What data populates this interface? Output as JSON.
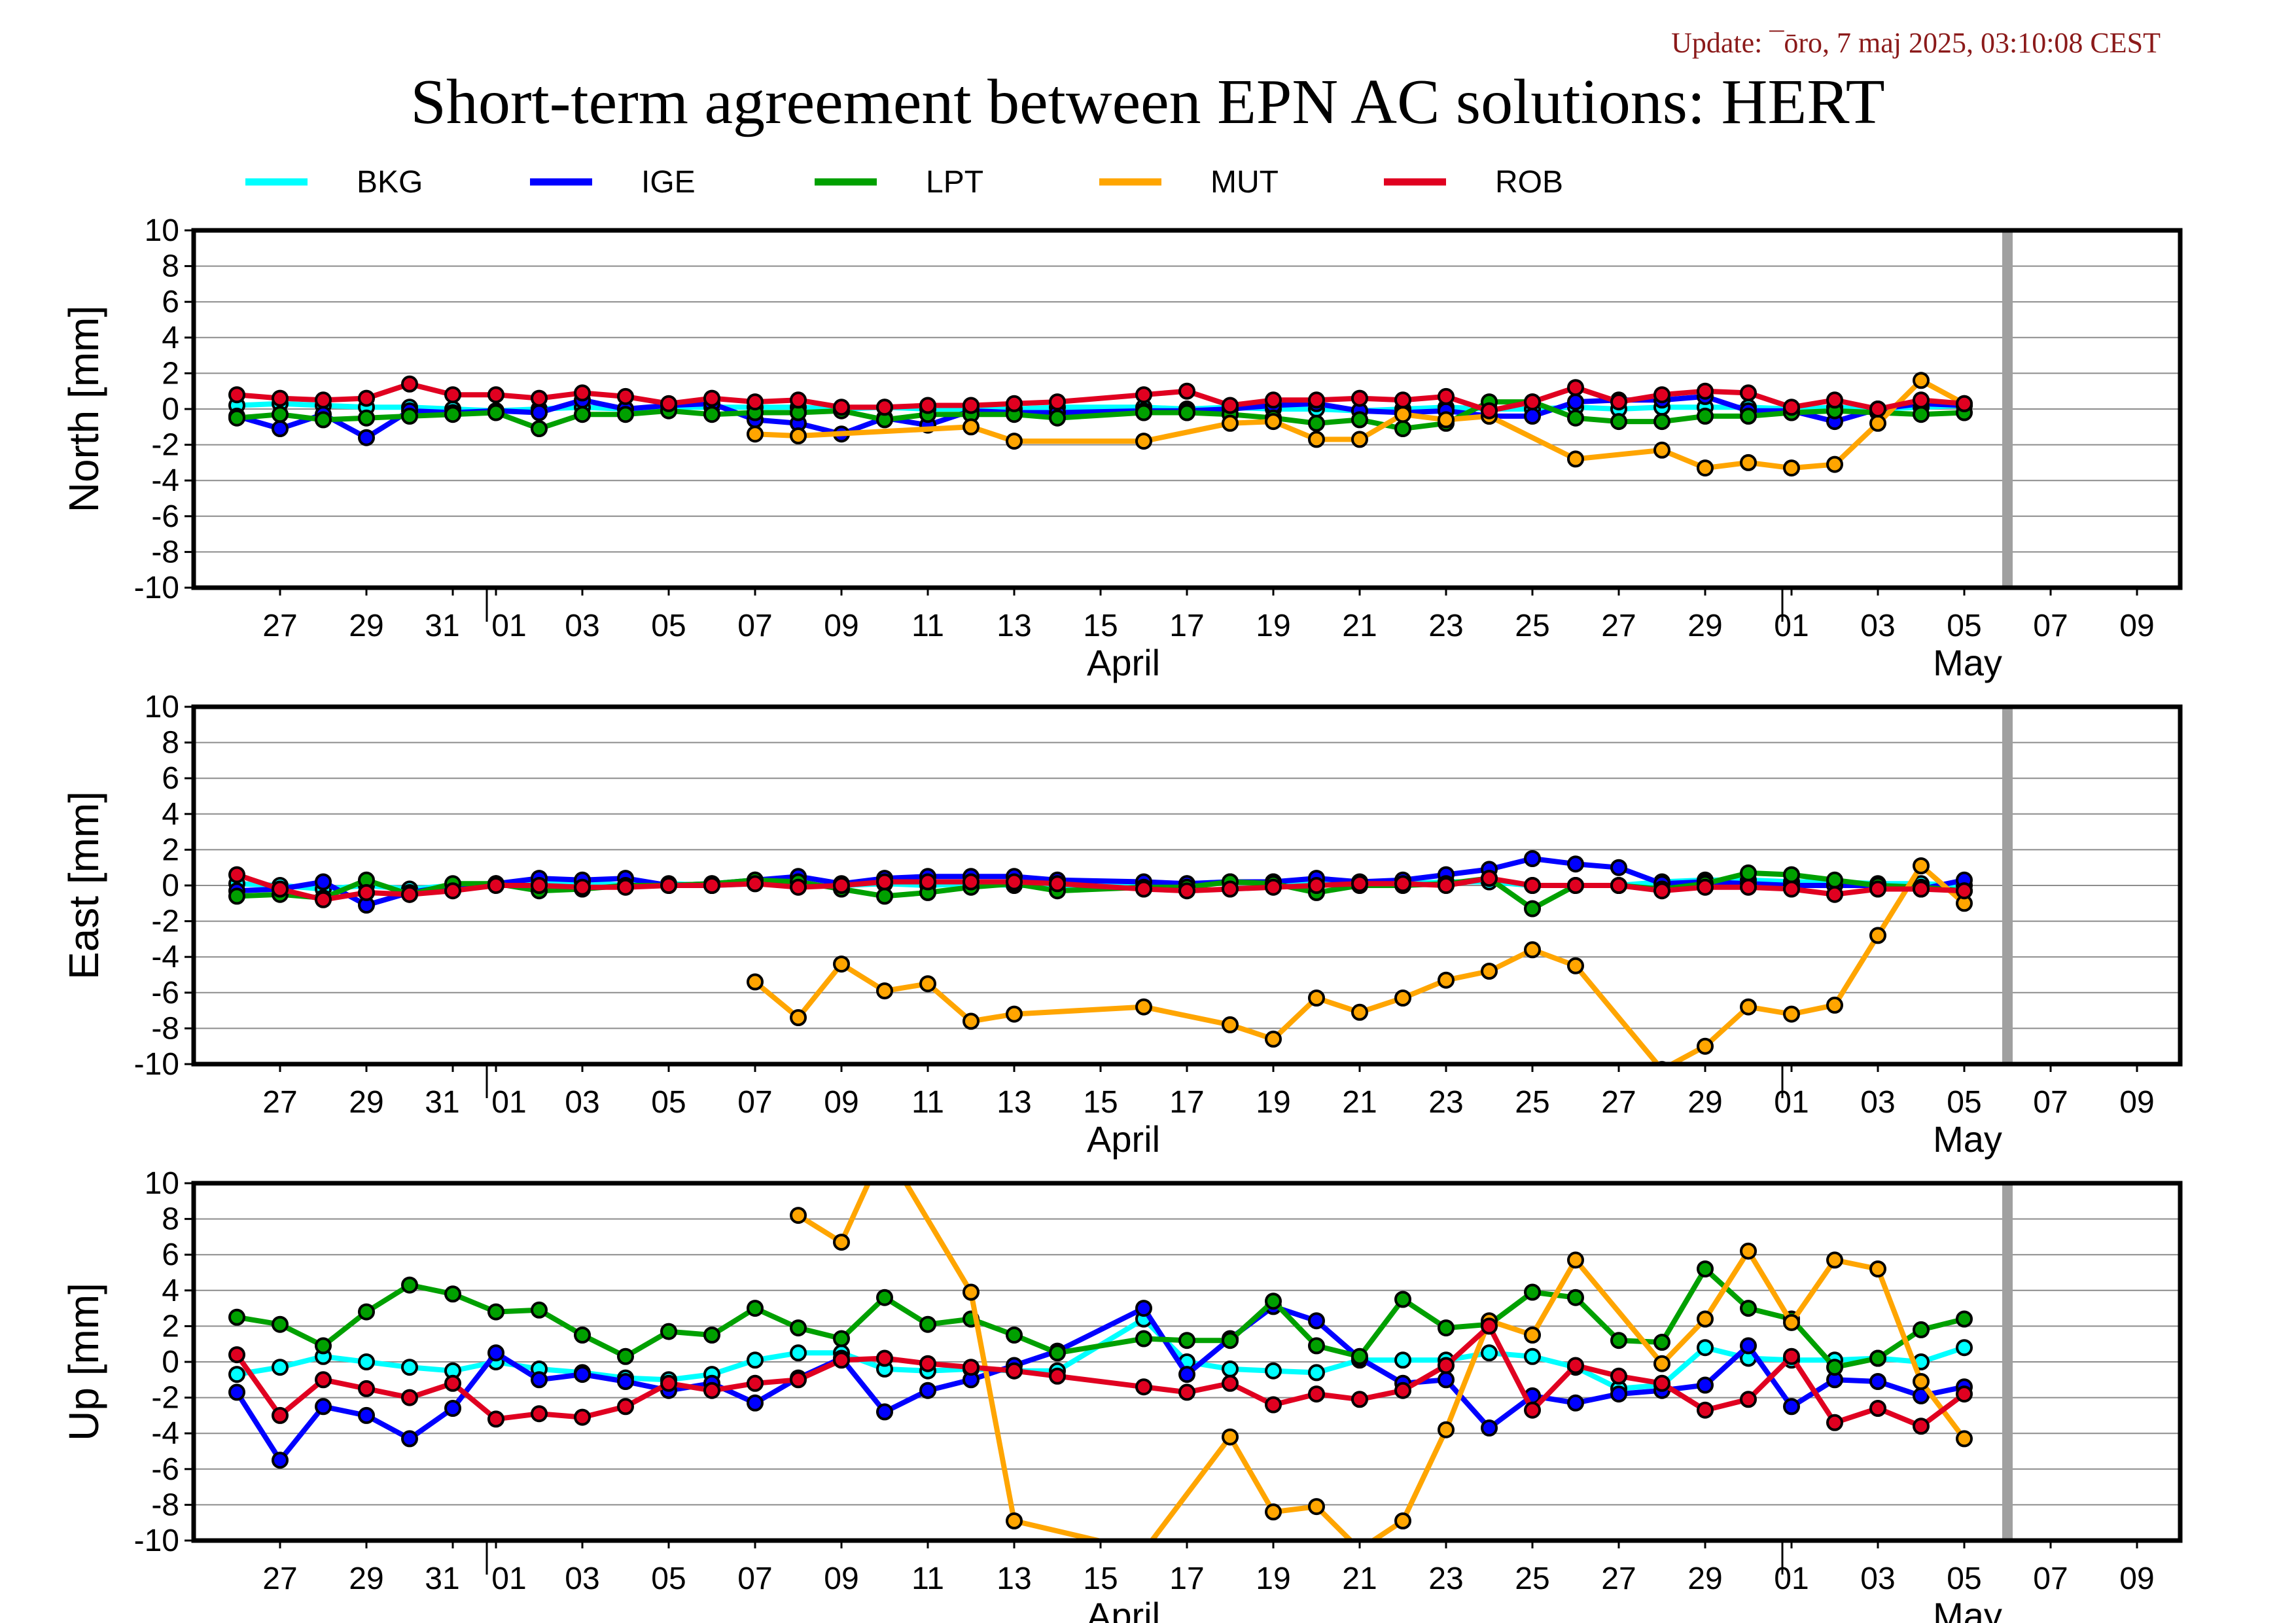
{
  "header": {
    "update_text": "Update: ¯ōro, 7 maj 2025, 03:10:08 CEST",
    "title": "Short-term agreement between EPN AC solutions: HERT"
  },
  "legend": [
    {
      "name": "BKG",
      "color": "#00ffff"
    },
    {
      "name": "IGE",
      "color": "#0000ff"
    },
    {
      "name": "LPT",
      "color": "#00a000"
    },
    {
      "name": "MUT",
      "color": "#ffa500"
    },
    {
      "name": "ROB",
      "color": "#e00020"
    }
  ],
  "chart_data": {
    "type": "line",
    "x_axis": {
      "range": [
        "2025-03-25",
        "2025-05-10"
      ],
      "tick_labels": [
        "27",
        "29",
        "31",
        "01",
        "03",
        "05",
        "07",
        "09",
        "11",
        "13",
        "15",
        "17",
        "19",
        "21",
        "23",
        "25",
        "27",
        "29",
        "01",
        "03",
        "05",
        "07",
        "09"
      ],
      "month_labels": [
        "April",
        "May"
      ]
    },
    "ylim": [
      -10,
      10
    ],
    "y_ticks": [
      "10",
      "8",
      "6",
      "4",
      "2",
      "0",
      "-2",
      "-4",
      "-6",
      "-8",
      "-10"
    ],
    "dates": [
      "03-26",
      "03-27",
      "03-28",
      "03-29",
      "03-30",
      "03-31",
      "04-01",
      "04-02",
      "04-03",
      "04-04",
      "04-05",
      "04-06",
      "04-07",
      "04-08",
      "04-09",
      "04-10",
      "04-11",
      "04-12",
      "04-13",
      "04-14",
      "04-16",
      "04-17",
      "04-18",
      "04-19",
      "04-20",
      "04-21",
      "04-22",
      "04-23",
      "04-24",
      "04-25",
      "04-26",
      "04-27",
      "04-28",
      "04-29",
      "04-30",
      "05-01",
      "05-02",
      "05-03",
      "05-04",
      "05-05"
    ],
    "panels": [
      {
        "ylabel": "North [mm]",
        "series": [
          {
            "name": "BKG",
            "values": [
              0.2,
              0.3,
              0.2,
              0.1,
              0.1,
              0,
              -0.1,
              0,
              0.1,
              0,
              0.1,
              0.1,
              0.1,
              0.1,
              0,
              0.1,
              0,
              0,
              0,
              0.1,
              0.1,
              0,
              0.1,
              0,
              0,
              -0.1,
              0,
              0.1,
              0,
              0,
              0.1,
              0,
              0.1,
              0.1,
              0.1,
              0,
              0.1,
              0,
              0.1,
              0.2
            ]
          },
          {
            "name": "IGE",
            "values": [
              -0.4,
              -1.1,
              -0.3,
              -1.6,
              -0.1,
              -0.2,
              -0.1,
              -0.2,
              0.5,
              0,
              0.2,
              0.3,
              -0.6,
              -0.8,
              -1.4,
              -0.5,
              -0.9,
              -0.1,
              -0.2,
              -0.2,
              -0.1,
              -0.1,
              0,
              0.2,
              0.3,
              -0.1,
              -0.2,
              -0.1,
              -0.4,
              -0.4,
              0.4,
              0.5,
              0.5,
              0.7,
              -0.1,
              -0.1,
              -0.7,
              0,
              0.3,
              0.2
            ]
          },
          {
            "name": "LPT",
            "values": [
              -0.5,
              -0.3,
              -0.6,
              -0.5,
              -0.4,
              -0.3,
              -0.2,
              -1.1,
              -0.3,
              -0.3,
              -0.1,
              -0.3,
              -0.2,
              -0.2,
              -0.1,
              -0.6,
              -0.3,
              -0.3,
              -0.3,
              -0.5,
              -0.2,
              -0.2,
              -0.3,
              -0.5,
              -0.8,
              -0.6,
              -1.1,
              -0.8,
              0.4,
              0.4,
              -0.5,
              -0.7,
              -0.7,
              -0.4,
              -0.4,
              -0.2,
              -0.1,
              -0.2,
              -0.3,
              -0.2
            ]
          },
          {
            "name": "MUT",
            "values": [
              null,
              null,
              null,
              null,
              null,
              null,
              null,
              null,
              null,
              null,
              null,
              null,
              -1.4,
              -1.5,
              null,
              null,
              null,
              -1.0,
              -1.8,
              null,
              -1.8,
              null,
              -0.8,
              -0.7,
              -1.7,
              -1.7,
              -0.3,
              -0.6,
              -0.4,
              null,
              -2.8,
              null,
              -2.3,
              -3.3,
              -3.0,
              -3.3,
              -3.1,
              -0.8,
              1.6,
              0.3
            ]
          },
          {
            "name": "ROB",
            "values": [
              0.8,
              0.6,
              0.5,
              0.6,
              1.4,
              0.8,
              0.8,
              0.6,
              0.9,
              0.7,
              0.3,
              0.6,
              0.4,
              0.5,
              0.1,
              0.1,
              0.2,
              0.2,
              0.3,
              0.4,
              0.8,
              1.0,
              0.2,
              0.5,
              0.5,
              0.6,
              0.5,
              0.7,
              -0.1,
              0.4,
              1.2,
              0.4,
              0.8,
              1.0,
              0.9,
              0.1,
              0.5,
              0,
              0.5,
              0.3
            ]
          }
        ]
      },
      {
        "ylabel": "East [mm]",
        "series": [
          {
            "name": "BKG",
            "values": [
              0.1,
              0,
              -0.2,
              0,
              -0.2,
              0,
              0.1,
              0.1,
              0.2,
              0,
              0.1,
              0,
              0.1,
              0,
              0,
              0.1,
              0,
              0.1,
              0,
              0,
              0,
              0.1,
              0.2,
              0.2,
              0.1,
              0.1,
              0.1,
              0.2,
              0.2,
              0,
              0,
              0,
              0.2,
              0.3,
              0.3,
              0.2,
              0.2,
              0.1,
              0.1,
              0
            ]
          },
          {
            "name": "IGE",
            "values": [
              -0.3,
              -0.2,
              0.2,
              -1.1,
              -0.4,
              0,
              0.1,
              0.4,
              0.3,
              0.4,
              0,
              0.1,
              0.3,
              0.5,
              0.1,
              0.4,
              0.5,
              0.5,
              0.5,
              0.3,
              0.2,
              0.1,
              0.2,
              0.2,
              0.4,
              0.2,
              0.3,
              0.6,
              0.9,
              1.5,
              1.2,
              1.0,
              0.1,
              0.2,
              0.1,
              0,
              0,
              0,
              -0.2,
              0.3
            ]
          },
          {
            "name": "LPT",
            "values": [
              -0.6,
              -0.5,
              -0.7,
              0.3,
              -0.5,
              0.1,
              0.1,
              -0.3,
              -0.2,
              0,
              0,
              0.1,
              0.3,
              0.2,
              -0.2,
              -0.6,
              -0.4,
              -0.1,
              0.1,
              -0.3,
              -0.1,
              -0.1,
              0.2,
              0.1,
              -0.4,
              0,
              0,
              0.1,
              0.4,
              -1.3,
              0,
              0,
              -0.2,
              0.1,
              0.7,
              0.6,
              0.3,
              0,
              -0.1,
              -0.3
            ]
          },
          {
            "name": "MUT",
            "values": [
              null,
              null,
              null,
              null,
              null,
              null,
              null,
              null,
              null,
              null,
              null,
              null,
              -5.4,
              -7.4,
              -4.4,
              -5.9,
              -5.5,
              -7.6,
              -7.2,
              null,
              -6.8,
              null,
              -7.8,
              -8.6,
              -6.3,
              -7.1,
              -6.3,
              -5.3,
              -4.8,
              -3.6,
              -4.5,
              null,
              -10.3,
              -9.0,
              -6.8,
              -7.2,
              -6.7,
              -2.8,
              1.1,
              -1.0
            ]
          },
          {
            "name": "ROB",
            "values": [
              0.6,
              -0.2,
              -0.8,
              -0.4,
              -0.5,
              -0.3,
              0,
              0,
              -0.1,
              -0.1,
              0,
              0,
              0.1,
              -0.1,
              0,
              0.2,
              0.2,
              0.2,
              0.2,
              0.1,
              -0.2,
              -0.3,
              -0.2,
              -0.1,
              0,
              0.1,
              0.1,
              0,
              0.4,
              0,
              0,
              0,
              -0.3,
              -0.1,
              -0.1,
              -0.2,
              -0.5,
              -0.2,
              -0.2,
              -0.3
            ]
          }
        ]
      },
      {
        "ylabel": "Up [mm]",
        "series": [
          {
            "name": "BKG",
            "values": [
              -0.7,
              -0.3,
              0.3,
              0,
              -0.3,
              -0.5,
              0,
              -0.4,
              -0.6,
              -0.9,
              -1.0,
              -0.7,
              0.1,
              0.5,
              0.5,
              -0.4,
              -0.5,
              -0.4,
              -0.5,
              -0.5,
              2.4,
              0,
              -0.4,
              -0.5,
              -0.6,
              0.1,
              0.1,
              0.1,
              0.5,
              0.3,
              -0.3,
              -1.5,
              -1.3,
              0.8,
              0.2,
              0.1,
              0.1,
              0.2,
              0,
              0.8
            ]
          },
          {
            "name": "IGE",
            "values": [
              -1.7,
              -5.5,
              -2.5,
              -3.0,
              -4.3,
              -2.6,
              0.5,
              -1.0,
              -0.7,
              -1.1,
              -1.6,
              -1.2,
              -2.3,
              -0.9,
              0.2,
              -2.8,
              -1.6,
              -1.0,
              -0.2,
              0.6,
              3.0,
              -0.7,
              1.3,
              3.1,
              2.3,
              0.2,
              -1.2,
              -1.0,
              -3.7,
              -1.9,
              -2.3,
              -1.8,
              -1.6,
              -1.3,
              0.9,
              -2.5,
              -1.0,
              -1.1,
              -1.9,
              -1.4
            ]
          },
          {
            "name": "LPT",
            "values": [
              2.5,
              2.1,
              0.9,
              2.8,
              4.3,
              3.8,
              2.8,
              2.9,
              1.5,
              0.3,
              1.7,
              1.5,
              3.0,
              1.9,
              1.3,
              3.6,
              2.1,
              2.4,
              1.5,
              0.5,
              1.3,
              1.2,
              1.2,
              3.4,
              0.9,
              0.3,
              3.5,
              1.9,
              2.1,
              3.9,
              3.6,
              1.2,
              1.1,
              5.2,
              3.0,
              2.4,
              -0.3,
              0.2,
              1.8,
              2.4
            ]
          },
          {
            "name": "MUT",
            "values": [
              null,
              null,
              null,
              null,
              null,
              null,
              null,
              null,
              null,
              null,
              null,
              null,
              null,
              8.2,
              6.7,
              12.0,
              null,
              3.9,
              -8.9,
              null,
              -10.6,
              null,
              -4.2,
              -8.4,
              -8.1,
              -10.5,
              -8.9,
              -3.8,
              2.3,
              1.5,
              5.7,
              null,
              -0.1,
              2.4,
              6.2,
              2.2,
              5.7,
              5.2,
              -1.1,
              -4.3
            ]
          },
          {
            "name": "ROB",
            "values": [
              0.4,
              -3.0,
              -1.0,
              -1.5,
              -2.0,
              -1.2,
              -3.2,
              -2.9,
              -3.1,
              -2.5,
              -1.2,
              -1.6,
              -1.2,
              -1.0,
              0.1,
              0.2,
              -0.1,
              -0.3,
              -0.5,
              -0.8,
              -1.4,
              -1.7,
              -1.2,
              -2.4,
              -1.8,
              -2.1,
              -1.6,
              -0.2,
              2.0,
              -2.7,
              -0.2,
              -0.8,
              -1.2,
              -2.7,
              -2.1,
              0.3,
              -3.4,
              -2.6,
              -3.6,
              -1.8
            ]
          }
        ]
      }
    ]
  }
}
